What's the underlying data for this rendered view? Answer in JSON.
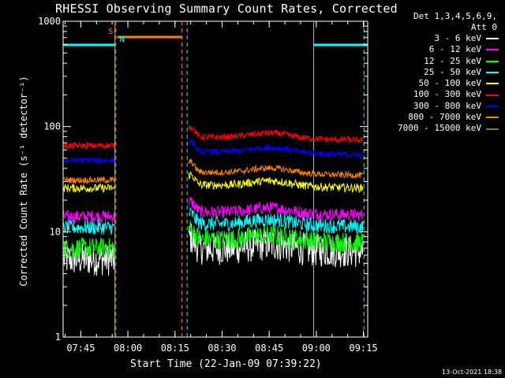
{
  "chart_data": {
    "type": "line",
    "title": "RHESSI Observing Summary Count Rates, Corrected",
    "legend_header": [
      "Det 1,3,4,5,6,9,",
      "Att 0"
    ],
    "xlabel": "Start Time (22-Jan-09 07:39:22)",
    "ylabel": "Corrected Count Rate (s⁻¹ detector⁻¹)",
    "timestamp": "13-Oct-2021 18:38",
    "x_unit": "minutes since 07:39:22",
    "xlim": [
      0,
      97
    ],
    "ylim": [
      1,
      1000
    ],
    "yscale": "log",
    "x_ticks": [
      {
        "label": "07:45",
        "t": 5.63
      },
      {
        "label": "08:00",
        "t": 20.63
      },
      {
        "label": "08:15",
        "t": 35.63
      },
      {
        "label": "08:30",
        "t": 50.63
      },
      {
        "label": "08:45",
        "t": 65.63
      },
      {
        "label": "09:00",
        "t": 80.63
      },
      {
        "label": "09:15",
        "t": 95.63
      }
    ],
    "y_ticks": [
      {
        "label": "1",
        "v": 1
      },
      {
        "label": "10",
        "v": 10
      },
      {
        "label": "100",
        "v": 100
      },
      {
        "label": "1000",
        "v": 1000
      }
    ],
    "markers": [
      {
        "label": "S",
        "color": "#ff8000"
      },
      {
        "label": "N",
        "color": "#00ffff"
      }
    ],
    "series": [
      {
        "name": "3 - 6 keV",
        "color": "#ffffff",
        "seg1": 5.5,
        "seg2": 7.0,
        "noise": 0.16
      },
      {
        "name": "6 - 12 keV",
        "color": "#ff00ff",
        "seg1": 14.0,
        "seg2": 15.5,
        "noise": 0.06
      },
      {
        "name": "12 - 25 keV",
        "color": "#00ff00",
        "seg1": 7.0,
        "seg2": 8.5,
        "noise": 0.1
      },
      {
        "name": "25 - 50 keV",
        "color": "#00ffff",
        "seg1": 11.0,
        "seg2": 12.0,
        "noise": 0.07
      },
      {
        "name": "50 - 100 keV",
        "color": "#ffff00",
        "seg1": 26.0,
        "seg2": 28.0,
        "noise": 0.04
      },
      {
        "name": "100 - 300 keV",
        "color": "#ff0000",
        "seg1": 66.0,
        "seg2": 80.0,
        "noise": 0.03
      },
      {
        "name": "300 - 800 keV",
        "color": "#0000ff",
        "seg1": 48.0,
        "seg2": 58.0,
        "noise": 0.03
      },
      {
        "name": "800 - 7000 keV",
        "color": "#ff8000",
        "seg1": 31.0,
        "seg2": 37.0,
        "noise": 0.03
      },
      {
        "name": "7000 - 15000 keV",
        "color": "#808000",
        "seg1": null,
        "seg2": null,
        "noise": 0
      }
    ]
  }
}
